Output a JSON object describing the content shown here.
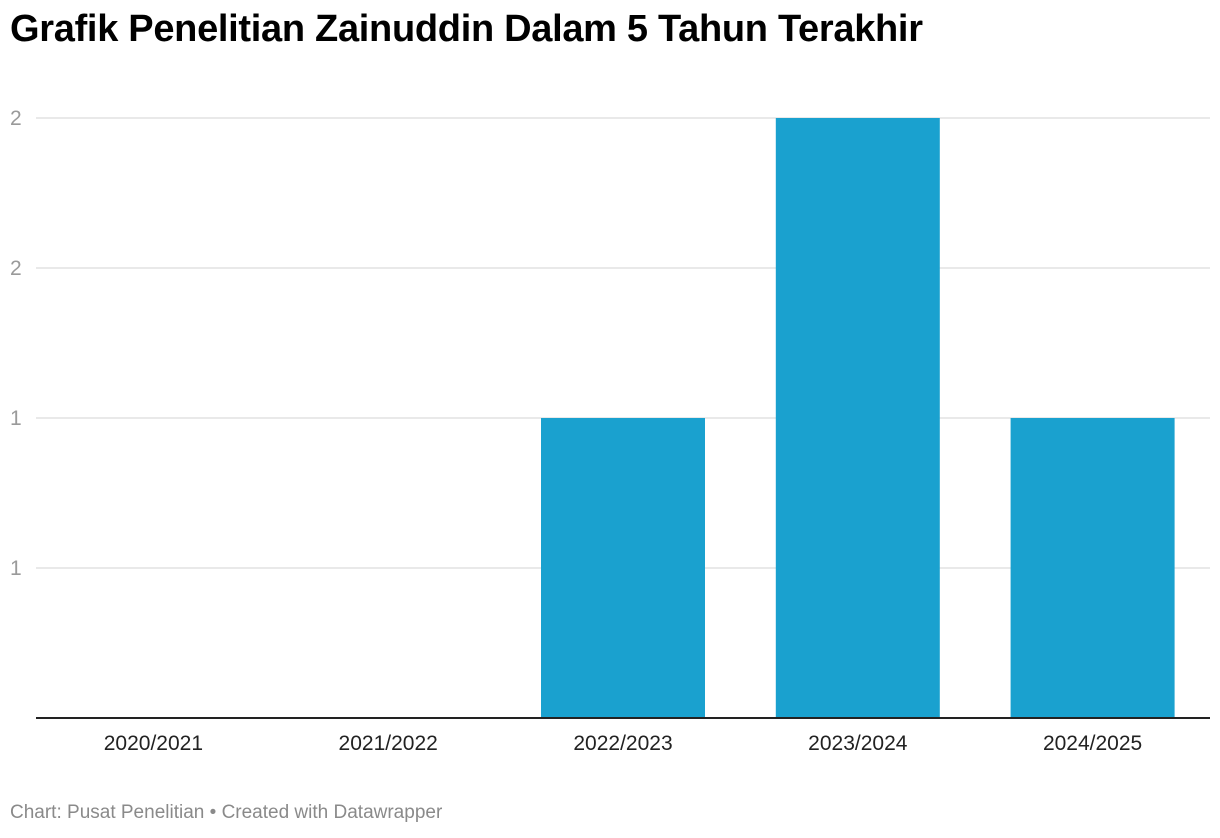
{
  "chart_data": {
    "type": "bar",
    "title": "Grafik Penelitian Zainuddin Dalam 5 Tahun Terakhir",
    "categories": [
      "2020/2021",
      "2021/2022",
      "2022/2023",
      "2023/2024",
      "2024/2025"
    ],
    "values": [
      0,
      0,
      1,
      2,
      1
    ],
    "ylim": [
      0,
      2
    ],
    "yticks": [
      {
        "value": 0.5,
        "label": "1"
      },
      {
        "value": 1.0,
        "label": "1"
      },
      {
        "value": 1.5,
        "label": "2"
      },
      {
        "value": 2.0,
        "label": "2"
      }
    ],
    "grid": true,
    "bar_color": "#1aa1cf",
    "xlabel": "",
    "ylabel": ""
  },
  "footer": {
    "source_label": "Chart: Pusat Penelitian",
    "separator": " • ",
    "credit": "Created with Datawrapper"
  }
}
